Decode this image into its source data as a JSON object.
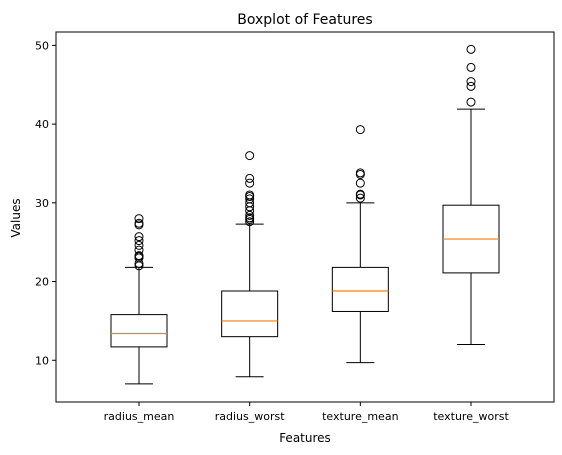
{
  "chart_data": {
    "type": "boxplot",
    "title": "Boxplot of Features",
    "xlabel": "Features",
    "ylabel": "Values",
    "ylim": [
      4.7,
      51.7
    ],
    "yticks": [
      10,
      20,
      30,
      40,
      50
    ],
    "grid": false,
    "legend": "none",
    "colors": {
      "box": "#000000",
      "median": "#ff7f0e",
      "flier": "#000000"
    },
    "categories": [
      "radius_mean",
      "radius_worst",
      "texture_mean",
      "texture_worst"
    ],
    "boxes": [
      {
        "whisker_low": 7.0,
        "q1": 11.7,
        "median": 13.4,
        "q3": 15.8,
        "whisker_high": 21.8,
        "outliers": [
          22.0,
          22.3,
          23.0,
          23.2,
          23.3,
          24.0,
          24.6,
          25.2,
          25.7,
          27.2,
          27.4,
          28.0
        ]
      },
      {
        "whisker_low": 7.9,
        "q1": 13.0,
        "median": 15.0,
        "q3": 18.8,
        "whisker_high": 27.3,
        "outliers": [
          27.6,
          27.9,
          28.1,
          28.4,
          29.0,
          29.5,
          30.0,
          30.5,
          30.8,
          31.0,
          32.5,
          33.1,
          36.0
        ]
      },
      {
        "whisker_low": 9.7,
        "q1": 16.2,
        "median": 18.8,
        "q3": 21.8,
        "whisker_high": 30.0,
        "outliers": [
          30.6,
          31.0,
          31.1,
          32.5,
          33.6,
          33.8,
          39.3
        ]
      },
      {
        "whisker_low": 12.0,
        "q1": 21.1,
        "median": 25.4,
        "q3": 29.7,
        "whisker_high": 41.9,
        "outliers": [
          42.8,
          44.8,
          45.4,
          47.2,
          49.5
        ]
      }
    ]
  }
}
